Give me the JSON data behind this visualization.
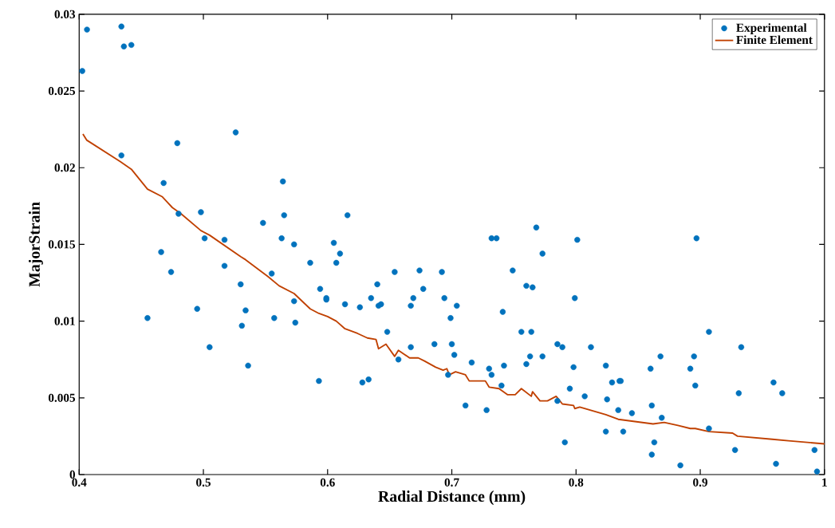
{
  "chart_data": {
    "type": "scatter",
    "xlabel": "Radial Distance (mm)",
    "ylabel": "MajorStrain",
    "xlim": [
      0.4,
      1
    ],
    "ylim": [
      0,
      0.03
    ],
    "xticks": [
      0.4,
      0.5,
      0.6,
      0.7,
      0.8,
      0.9,
      {
        "value": 1,
        "label": "1"
      }
    ],
    "yticks": [
      0,
      0.005,
      0.01,
      0.015,
      0.02,
      0.025,
      0.03
    ],
    "grid": false,
    "legend": "top right",
    "series": [
      {
        "name": "Experimental",
        "color": "#0072bd",
        "marker": "circle",
        "x": [
          0.4025,
          0.4063,
          0.434,
          0.436,
          0.442,
          0.434,
          0.479,
          0.468,
          0.48,
          0.526,
          0.498,
          0.501,
          0.517,
          0.466,
          0.474,
          0.455,
          0.495,
          0.505,
          0.517,
          0.53,
          0.531,
          0.534,
          0.536,
          0.548,
          0.555,
          0.557,
          0.564,
          0.563,
          0.565,
          0.573,
          0.573,
          0.574,
          0.586,
          0.593,
          0.594,
          0.599,
          0.599,
          0.605,
          0.607,
          0.61,
          0.616,
          0.614,
          0.626,
          0.628,
          0.633,
          0.635,
          0.64,
          0.641,
          0.643,
          0.648,
          0.654,
          0.657,
          0.667,
          0.667,
          0.669,
          0.674,
          0.677,
          0.686,
          0.692,
          0.694,
          0.697,
          0.699,
          0.7,
          0.702,
          0.704,
          0.711,
          0.716,
          0.728,
          0.73,
          0.732,
          0.732,
          0.736,
          0.74,
          0.741,
          0.742,
          0.749,
          0.756,
          0.76,
          0.76,
          0.763,
          0.765,
          0.764,
          0.768,
          0.773,
          0.773,
          0.785,
          0.785,
          0.789,
          0.791,
          0.795,
          0.798,
          0.799,
          0.801,
          0.807,
          0.812,
          0.824,
          0.824,
          0.825,
          0.829,
          0.834,
          0.835,
          0.836,
          0.838,
          0.845,
          0.86,
          0.861,
          0.861,
          0.863,
          0.868,
          0.869,
          0.884,
          0.892,
          0.895,
          0.896,
          0.897,
          0.907,
          0.907,
          0.928,
          0.931,
          0.933,
          0.959,
          0.961,
          0.966,
          0.992,
          0.994
        ],
        "values": [
          0.0263,
          0.029,
          0.0292,
          0.0279,
          0.028,
          0.0208,
          0.0216,
          0.019,
          0.017,
          0.0223,
          0.0171,
          0.0154,
          0.0153,
          0.0145,
          0.0132,
          0.0102,
          0.0108,
          0.0083,
          0.0136,
          0.0124,
          0.0097,
          0.0107,
          0.0071,
          0.0164,
          0.0131,
          0.0102,
          0.0191,
          0.0154,
          0.0169,
          0.015,
          0.0113,
          0.0099,
          0.0138,
          0.0061,
          0.0121,
          0.0115,
          0.0114,
          0.0151,
          0.0138,
          0.0144,
          0.0169,
          0.0111,
          0.0109,
          0.006,
          0.0062,
          0.0115,
          0.0124,
          0.011,
          0.0111,
          0.0093,
          0.0132,
          0.0075,
          0.011,
          0.0083,
          0.0115,
          0.0133,
          0.0121,
          0.0085,
          0.0132,
          0.0115,
          0.0065,
          0.0102,
          0.0085,
          0.0078,
          0.011,
          0.0045,
          0.0073,
          0.0042,
          0.0069,
          0.0065,
          0.0154,
          0.0154,
          0.0058,
          0.0106,
          0.0071,
          0.0133,
          0.0093,
          0.0123,
          0.0072,
          0.0077,
          0.0122,
          0.0093,
          0.0161,
          0.0144,
          0.0077,
          0.0048,
          0.0085,
          0.0083,
          0.0021,
          0.0056,
          0.007,
          0.0115,
          0.0153,
          0.0051,
          0.0083,
          0.0071,
          0.0028,
          0.0049,
          0.006,
          0.0042,
          0.0061,
          0.0061,
          0.0028,
          0.004,
          0.0069,
          0.0045,
          0.0013,
          0.0021,
          0.0077,
          0.0037,
          0.0006,
          0.0069,
          0.0077,
          0.0058,
          0.0154,
          0.0093,
          0.003,
          0.0016,
          0.0053,
          0.0083,
          0.006,
          0.0007,
          0.0053,
          0.0016,
          0.0002
        ]
      },
      {
        "name": "Finite Element",
        "type": "line",
        "color": "#c04000",
        "marker": "none",
        "line_style": "solid",
        "x": [
          0.403,
          0.406,
          0.433,
          0.442,
          0.455,
          0.467,
          0.475,
          0.482,
          0.498,
          0.505,
          0.53,
          0.534,
          0.552,
          0.561,
          0.573,
          0.586,
          0.593,
          0.6,
          0.607,
          0.614,
          0.624,
          0.632,
          0.639,
          0.641,
          0.647,
          0.654,
          0.657,
          0.666,
          0.673,
          0.678,
          0.687,
          0.693,
          0.696,
          0.698,
          0.703,
          0.711,
          0.714,
          0.727,
          0.73,
          0.738,
          0.745,
          0.751,
          0.756,
          0.764,
          0.765,
          0.771,
          0.777,
          0.784,
          0.789,
          0.798,
          0.799,
          0.803,
          0.824,
          0.834,
          0.862,
          0.871,
          0.882,
          0.892,
          0.896,
          0.907,
          0.926,
          0.93,
          0.958,
          0.971,
          1.0
        ],
        "values": [
          0.0222,
          0.0218,
          0.0204,
          0.0199,
          0.0186,
          0.0181,
          0.0174,
          0.017,
          0.0159,
          0.0156,
          0.0142,
          0.014,
          0.0129,
          0.0123,
          0.0118,
          0.0108,
          0.0105,
          0.0103,
          0.01,
          0.0095,
          0.0092,
          0.0089,
          0.0088,
          0.0082,
          0.0085,
          0.0077,
          0.0081,
          0.0076,
          0.0076,
          0.0074,
          0.007,
          0.0068,
          0.0069,
          0.0065,
          0.0067,
          0.0065,
          0.0061,
          0.0061,
          0.0057,
          0.0056,
          0.0052,
          0.0052,
          0.0056,
          0.0051,
          0.0054,
          0.0048,
          0.0048,
          0.0051,
          0.0046,
          0.0045,
          0.0043,
          0.0044,
          0.0039,
          0.0036,
          0.0033,
          0.0034,
          0.0032,
          0.003,
          0.003,
          0.0028,
          0.0027,
          0.0025,
          0.0023,
          0.0022,
          0.002
        ]
      }
    ]
  }
}
